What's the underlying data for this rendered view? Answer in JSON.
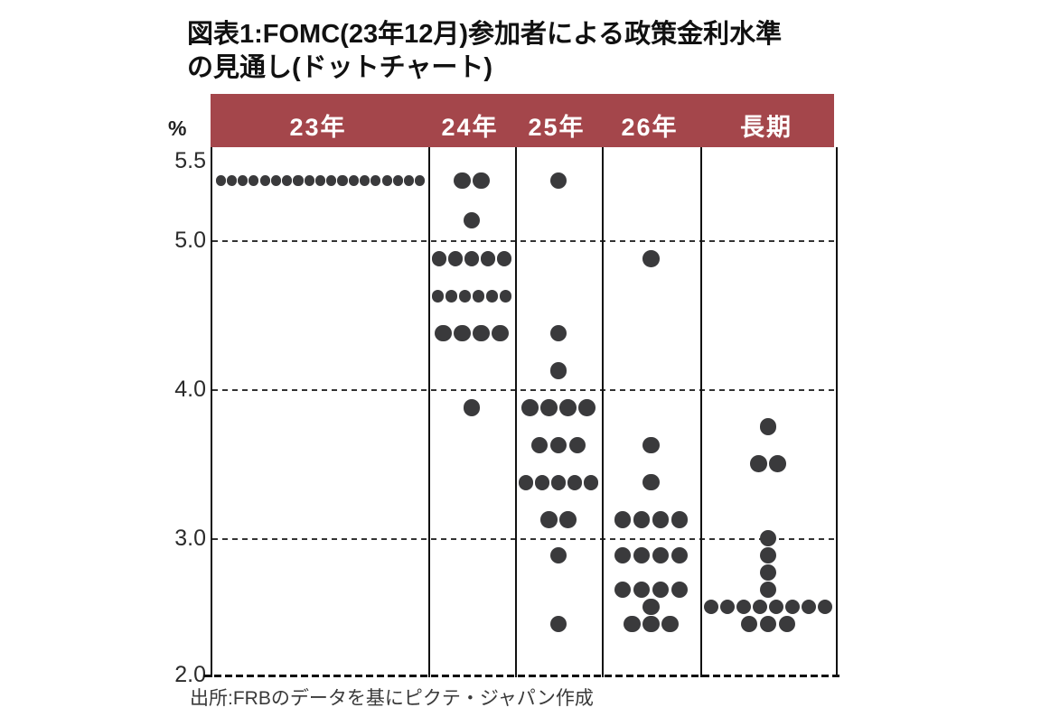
{
  "title": {
    "line1": "図表1:FOMC(23年12月)参加者による政策金利水準",
    "line2": "の見通し(ドットチャート)"
  },
  "y_axis": {
    "unit_label": "%",
    "ticks": [
      "5.5",
      "5.0",
      "4.0",
      "3.0",
      "2.0"
    ]
  },
  "source": "出所:FRBのデータを基にピクテ・ジャパン作成",
  "chart_data": {
    "type": "scatter",
    "subtype": "fomc-dot-plot",
    "title": "図表1:FOMC(23年12月)参加者による政策金利水準の見通し(ドットチャート)",
    "ylabel": "%",
    "ylim": [
      2.0,
      5.6
    ],
    "gridlines": [
      5.0,
      4.0,
      3.0,
      2.0
    ],
    "legend": "none",
    "columns": [
      {
        "label": "23年",
        "dots": [
          {
            "rate": 5.375,
            "count": 19
          }
        ]
      },
      {
        "label": "24年",
        "dots": [
          {
            "rate": 5.375,
            "count": 2
          },
          {
            "rate": 5.125,
            "count": 1
          },
          {
            "rate": 4.875,
            "count": 5
          },
          {
            "rate": 4.625,
            "count": 6
          },
          {
            "rate": 4.375,
            "count": 4
          },
          {
            "rate": 3.875,
            "count": 1
          }
        ]
      },
      {
        "label": "25年",
        "dots": [
          {
            "rate": 5.375,
            "count": 1
          },
          {
            "rate": 4.375,
            "count": 1
          },
          {
            "rate": 4.125,
            "count": 1
          },
          {
            "rate": 3.875,
            "count": 4
          },
          {
            "rate": 3.625,
            "count": 3
          },
          {
            "rate": 3.375,
            "count": 5
          },
          {
            "rate": 3.125,
            "count": 2
          },
          {
            "rate": 2.875,
            "count": 1
          },
          {
            "rate": 2.375,
            "count": 1
          }
        ]
      },
      {
        "label": "26年",
        "dots": [
          {
            "rate": 4.875,
            "count": 1
          },
          {
            "rate": 3.625,
            "count": 1
          },
          {
            "rate": 3.375,
            "count": 1
          },
          {
            "rate": 3.125,
            "count": 4
          },
          {
            "rate": 2.875,
            "count": 4
          },
          {
            "rate": 2.625,
            "count": 4
          },
          {
            "rate": 2.5,
            "count": 1
          },
          {
            "rate": 2.375,
            "count": 3
          }
        ]
      },
      {
        "label": "長期",
        "dots": [
          {
            "rate": 3.75,
            "count": 1
          },
          {
            "rate": 3.5,
            "count": 2
          },
          {
            "rate": 3.0,
            "count": 1
          },
          {
            "rate": 2.875,
            "count": 1
          },
          {
            "rate": 2.75,
            "count": 1
          },
          {
            "rate": 2.625,
            "count": 1
          },
          {
            "rate": 2.5,
            "count": 8
          },
          {
            "rate": 2.375,
            "count": 3
          }
        ]
      }
    ],
    "colors": {
      "header_bg": "#a4464b",
      "header_text": "#ffffff",
      "dot": "#3a3a3c",
      "axis_text": "#2b2b2b"
    }
  }
}
